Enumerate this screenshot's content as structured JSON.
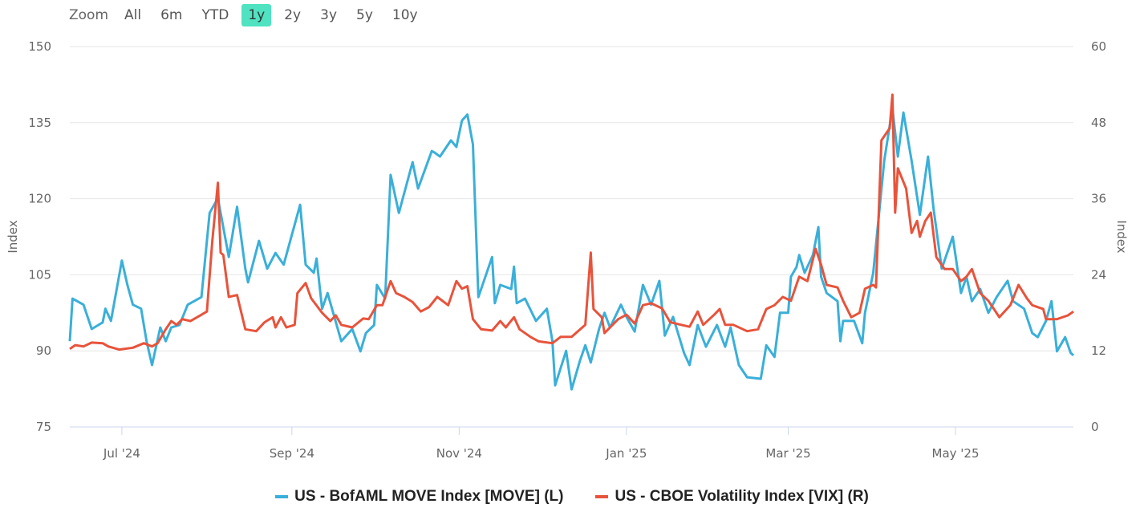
{
  "range_selector": {
    "label": "Zoom",
    "buttons": [
      "All",
      "6m",
      "YTD",
      "1y",
      "2y",
      "3y",
      "5y",
      "10y"
    ],
    "active": "1y",
    "active_color": "#4fe3c2"
  },
  "chart_data": {
    "type": "line",
    "x_unit": "days since 2024-06-12",
    "x_range": [
      0,
      366
    ],
    "x_ticks": [
      {
        "day": 19,
        "label": "Jul '24"
      },
      {
        "day": 81,
        "label": "Sep '24"
      },
      {
        "day": 142,
        "label": "Nov '24"
      },
      {
        "day": 203,
        "label": "Jan '25"
      },
      {
        "day": 262,
        "label": "Mar '25"
      },
      {
        "day": 323,
        "label": "May '25"
      }
    ],
    "y_left": {
      "title": "Index",
      "range": [
        75,
        150
      ],
      "ticks": [
        150,
        135,
        120,
        105,
        90,
        75
      ]
    },
    "y_right": {
      "title": "Index",
      "range": [
        0,
        60
      ],
      "ticks": [
        60,
        48,
        36,
        24,
        12,
        0
      ]
    },
    "grid": true,
    "legend_position": "bottom-center",
    "series": [
      {
        "name": "US - BofAML MOVE Index [MOVE] (L)",
        "axis": "left",
        "color": "#3aafd9",
        "points": [
          [
            0,
            91.9
          ],
          [
            1,
            100.3
          ],
          [
            5,
            99.1
          ],
          [
            8,
            94.3
          ],
          [
            12,
            95.6
          ],
          [
            13,
            98.3
          ],
          [
            15,
            95.9
          ],
          [
            19,
            107.8
          ],
          [
            21,
            103
          ],
          [
            23,
            99.1
          ],
          [
            26,
            98.3
          ],
          [
            28,
            91.9
          ],
          [
            30,
            87.2
          ],
          [
            33,
            94.6
          ],
          [
            35,
            91.9
          ],
          [
            37,
            94.6
          ],
          [
            40,
            95.1
          ],
          [
            43,
            99.1
          ],
          [
            48,
            100.6
          ],
          [
            51,
            117.2
          ],
          [
            54,
            120.1
          ],
          [
            58,
            108.5
          ],
          [
            61,
            118.4
          ],
          [
            64,
            106.2
          ],
          [
            65,
            103.5
          ],
          [
            69,
            111.7
          ],
          [
            72,
            106.2
          ],
          [
            75,
            109.3
          ],
          [
            78,
            107
          ],
          [
            84,
            118.8
          ],
          [
            86,
            107
          ],
          [
            89,
            105.4
          ],
          [
            90,
            108.2
          ],
          [
            92,
            98.3
          ],
          [
            94,
            101.4
          ],
          [
            99,
            91.9
          ],
          [
            103,
            94.3
          ],
          [
            106,
            89.9
          ],
          [
            108,
            93.5
          ],
          [
            111,
            95.1
          ],
          [
            112,
            103
          ],
          [
            115,
            100.3
          ],
          [
            117,
            124.7
          ],
          [
            120,
            117.2
          ],
          [
            125,
            127.2
          ],
          [
            127,
            122
          ],
          [
            132,
            129.4
          ],
          [
            133,
            129.1
          ],
          [
            135,
            128.3
          ],
          [
            139,
            131.5
          ],
          [
            141,
            130.2
          ],
          [
            143,
            135.4
          ],
          [
            145,
            136.6
          ],
          [
            147,
            130.7
          ],
          [
            149,
            100.6
          ],
          [
            154,
            108.5
          ],
          [
            155,
            99.4
          ],
          [
            157,
            103
          ],
          [
            161,
            102.2
          ],
          [
            162,
            106.6
          ],
          [
            163,
            99.4
          ],
          [
            166,
            100.3
          ],
          [
            170,
            95.9
          ],
          [
            174,
            98.3
          ],
          [
            176,
            91.9
          ],
          [
            177,
            83.2
          ],
          [
            181,
            90
          ],
          [
            183,
            82.4
          ],
          [
            186,
            88
          ],
          [
            188,
            91.1
          ],
          [
            190,
            87.7
          ],
          [
            193,
            94.3
          ],
          [
            195,
            97.5
          ],
          [
            197,
            94.6
          ],
          [
            201,
            99.1
          ],
          [
            203,
            96.7
          ],
          [
            206,
            93.8
          ],
          [
            209,
            103
          ],
          [
            212,
            99.1
          ],
          [
            215,
            103.8
          ],
          [
            217,
            93
          ],
          [
            220,
            96.7
          ],
          [
            224,
            89.6
          ],
          [
            226,
            87.2
          ],
          [
            229,
            95.1
          ],
          [
            232,
            90.8
          ],
          [
            236,
            95.1
          ],
          [
            239,
            90.8
          ],
          [
            241,
            94.6
          ],
          [
            244,
            87.2
          ],
          [
            247,
            84.8
          ],
          [
            252,
            84.5
          ],
          [
            254,
            91.1
          ],
          [
            257,
            88.8
          ],
          [
            259,
            97.5
          ],
          [
            262,
            97.5
          ],
          [
            263,
            104.6
          ],
          [
            265,
            106.5
          ],
          [
            266,
            108.9
          ],
          [
            268,
            105.4
          ],
          [
            271,
            108.9
          ],
          [
            273,
            114.4
          ],
          [
            274,
            104.6
          ],
          [
            276,
            101.4
          ],
          [
            280,
            99.8
          ],
          [
            281,
            91.9
          ],
          [
            282,
            95.9
          ],
          [
            286,
            95.9
          ],
          [
            289,
            91.5
          ],
          [
            290,
            97.5
          ],
          [
            293,
            105.4
          ],
          [
            297,
            127.5
          ],
          [
            300,
            137.8
          ],
          [
            302,
            128.3
          ],
          [
            304,
            137
          ],
          [
            307,
            127.5
          ],
          [
            310,
            116.8
          ],
          [
            313,
            128.3
          ],
          [
            315,
            118
          ],
          [
            318,
            106.2
          ],
          [
            322,
            112.5
          ],
          [
            325,
            101.4
          ],
          [
            327,
            104.6
          ],
          [
            329,
            99.8
          ],
          [
            332,
            102.2
          ],
          [
            335,
            97.5
          ],
          [
            338,
            100.6
          ],
          [
            342,
            103.8
          ],
          [
            344,
            99.8
          ],
          [
            348,
            98.3
          ],
          [
            351,
            93.5
          ],
          [
            353,
            92.7
          ],
          [
            356,
            95.9
          ],
          [
            358,
            99.8
          ],
          [
            360,
            89.9
          ],
          [
            363,
            92.7
          ],
          [
            365,
            89.6
          ],
          [
            366,
            89.1
          ]
        ]
      },
      {
        "name": "US - CBOE Volatility Index [VIX] (R)",
        "axis": "right",
        "color": "#e8533b",
        "points": [
          [
            0,
            12.3
          ],
          [
            2,
            12.9
          ],
          [
            5,
            12.7
          ],
          [
            8,
            13.3
          ],
          [
            12,
            13.2
          ],
          [
            14,
            12.7
          ],
          [
            18,
            12.2
          ],
          [
            23,
            12.5
          ],
          [
            27,
            13.2
          ],
          [
            30,
            12.7
          ],
          [
            32,
            13.2
          ],
          [
            35,
            15.4
          ],
          [
            37,
            16.7
          ],
          [
            39,
            16.1
          ],
          [
            41,
            17
          ],
          [
            44,
            16.7
          ],
          [
            48,
            17.7
          ],
          [
            50,
            18.2
          ],
          [
            52,
            29.4
          ],
          [
            54,
            38.5
          ],
          [
            55,
            27.5
          ],
          [
            56,
            27.1
          ],
          [
            58,
            20.5
          ],
          [
            61,
            20.8
          ],
          [
            64,
            15.4
          ],
          [
            68,
            15.1
          ],
          [
            71,
            16.5
          ],
          [
            74,
            17.3
          ],
          [
            75,
            15.7
          ],
          [
            77,
            17.3
          ],
          [
            79,
            15.7
          ],
          [
            82,
            16.1
          ],
          [
            83,
            21.1
          ],
          [
            86,
            22.7
          ],
          [
            88,
            20.3
          ],
          [
            92,
            18
          ],
          [
            95,
            16.7
          ],
          [
            97,
            17.6
          ],
          [
            99,
            16.1
          ],
          [
            103,
            15.7
          ],
          [
            107,
            17.1
          ],
          [
            109,
            17
          ],
          [
            112,
            19.2
          ],
          [
            114,
            19.2
          ],
          [
            117,
            23
          ],
          [
            119,
            21.1
          ],
          [
            122,
            20.5
          ],
          [
            125,
            19.7
          ],
          [
            128,
            18.2
          ],
          [
            131,
            18.9
          ],
          [
            134,
            20.5
          ],
          [
            138,
            19.2
          ],
          [
            141,
            23
          ],
          [
            143,
            21.8
          ],
          [
            145,
            22.2
          ],
          [
            147,
            17
          ],
          [
            150,
            15.4
          ],
          [
            154,
            15.2
          ],
          [
            157,
            16.7
          ],
          [
            159,
            15.7
          ],
          [
            162,
            17.3
          ],
          [
            164,
            15.4
          ],
          [
            168,
            14.2
          ],
          [
            171,
            13.5
          ],
          [
            176,
            13.2
          ],
          [
            179,
            14.2
          ],
          [
            183,
            14.2
          ],
          [
            188,
            16.1
          ],
          [
            190,
            27.5
          ],
          [
            191,
            18.6
          ],
          [
            194,
            17.3
          ],
          [
            195,
            14.8
          ],
          [
            200,
            17
          ],
          [
            203,
            17.7
          ],
          [
            206,
            16.3
          ],
          [
            209,
            19.2
          ],
          [
            212,
            19.5
          ],
          [
            216,
            18.7
          ],
          [
            219,
            16.5
          ],
          [
            223,
            16.1
          ],
          [
            226,
            15.8
          ],
          [
            229,
            18.2
          ],
          [
            231,
            16.1
          ],
          [
            235,
            17.7
          ],
          [
            237,
            18.6
          ],
          [
            239,
            16.1
          ],
          [
            242,
            16.1
          ],
          [
            247,
            15.1
          ],
          [
            251,
            15.4
          ],
          [
            254,
            18.6
          ],
          [
            257,
            19.2
          ],
          [
            260,
            20.5
          ],
          [
            263,
            19.9
          ],
          [
            266,
            23.7
          ],
          [
            269,
            23
          ],
          [
            272,
            28.1
          ],
          [
            274,
            25.6
          ],
          [
            276,
            22.4
          ],
          [
            280,
            22
          ],
          [
            282,
            19.9
          ],
          [
            285,
            17.3
          ],
          [
            288,
            18
          ],
          [
            290,
            21.8
          ],
          [
            293,
            22.4
          ],
          [
            294,
            22
          ],
          [
            296,
            45.2
          ],
          [
            299,
            47.1
          ],
          [
            300,
            52.4
          ],
          [
            301,
            33.8
          ],
          [
            302,
            40.8
          ],
          [
            305,
            37.6
          ],
          [
            307,
            30.6
          ],
          [
            309,
            32.5
          ],
          [
            310,
            30
          ],
          [
            312,
            32.5
          ],
          [
            314,
            33.8
          ],
          [
            316,
            26.8
          ],
          [
            319,
            24.9
          ],
          [
            322,
            24.9
          ],
          [
            325,
            23
          ],
          [
            327,
            23.7
          ],
          [
            329,
            24.9
          ],
          [
            332,
            21.1
          ],
          [
            335,
            19.9
          ],
          [
            337,
            18.6
          ],
          [
            339,
            17.3
          ],
          [
            343,
            19.2
          ],
          [
            346,
            22.4
          ],
          [
            349,
            20.3
          ],
          [
            351,
            19.2
          ],
          [
            355,
            18.6
          ],
          [
            356,
            17
          ],
          [
            360,
            17
          ],
          [
            364,
            17.6
          ],
          [
            366,
            18.2
          ]
        ]
      }
    ]
  }
}
